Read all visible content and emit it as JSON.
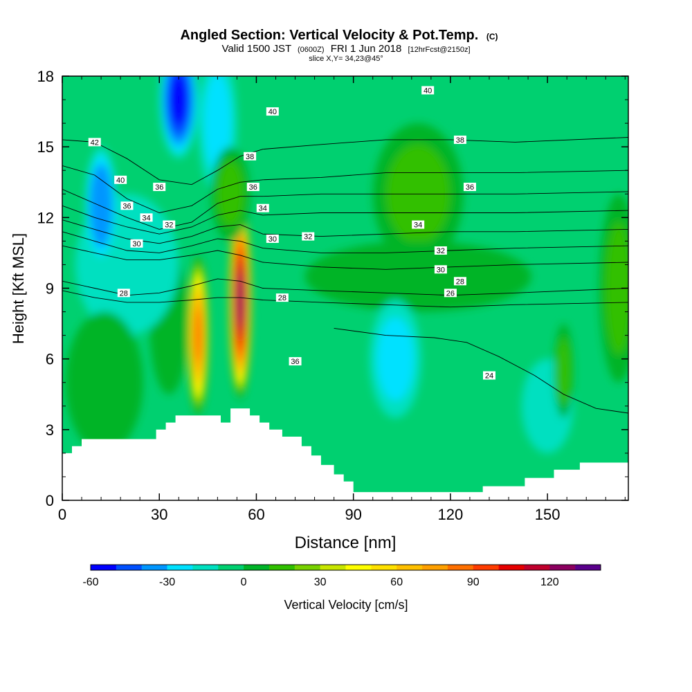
{
  "chart_data": {
    "type": "heatmap",
    "title": "Angled Section: Vertical Velocity & Pot.Temp.",
    "title_mark": "(C)",
    "subtitle_parts": {
      "valid": "Valid 1500 JST",
      "utc": "(0600Z)",
      "date": "FRI 1 Jun 2018",
      "fcst": "[12hrFcst@2150z]"
    },
    "slice_label": "slice X,Y= 34,23@45°",
    "xlabel": "Distance [nm]",
    "ylabel": "Height [Kft MSL]",
    "xlim": [
      0,
      175
    ],
    "ylim": [
      0,
      18
    ],
    "x_ticks": [
      {
        "value": 0,
        "label": "0"
      },
      {
        "value": 30,
        "label": "30"
      },
      {
        "value": 60,
        "label": "60"
      },
      {
        "value": 90,
        "label": "90"
      },
      {
        "value": 120,
        "label": "120"
      },
      {
        "value": 150,
        "label": "150"
      }
    ],
    "y_ticks": [
      {
        "value": 0,
        "label": "0"
      },
      {
        "value": 3,
        "label": "3"
      },
      {
        "value": 6,
        "label": "6"
      },
      {
        "value": 9,
        "label": "9"
      },
      {
        "value": 12,
        "label": "12"
      },
      {
        "value": 15,
        "label": "15"
      },
      {
        "value": 18,
        "label": "18"
      }
    ],
    "colorbar": {
      "label": "Vertical Velocity [cm/s]",
      "min": -60,
      "step": 10,
      "colors": [
        "#0000ff",
        "#0050ff",
        "#0096ff",
        "#00e1ff",
        "#00e0c0",
        "#00d070",
        "#00b428",
        "#30c000",
        "#78d200",
        "#c8e600",
        "#ffff00",
        "#ffe100",
        "#ffc000",
        "#ffa000",
        "#ff7000",
        "#ff3c00",
        "#e60000",
        "#c0002d",
        "#8c0060",
        "#5a008c"
      ],
      "ticks": [
        {
          "value": -60,
          "label": "-60"
        },
        {
          "value": -30,
          "label": "-30"
        },
        {
          "value": 0,
          "label": "0"
        },
        {
          "value": 30,
          "label": "30"
        },
        {
          "value": 60,
          "label": "60"
        },
        {
          "value": 90,
          "label": "90"
        },
        {
          "value": 120,
          "label": "120"
        }
      ]
    },
    "background_value": -5,
    "velocity_features": [
      {
        "x": 55,
        "y": 8.5,
        "rx": 3.5,
        "ry": 4.2,
        "value": 125
      },
      {
        "x": 42,
        "y": 7.0,
        "rx": 3.2,
        "ry": 3.4,
        "value": 80
      },
      {
        "x": 33,
        "y": 7.5,
        "rx": 6,
        "ry": 3,
        "value": 8
      },
      {
        "x": 20,
        "y": 10,
        "rx": 16,
        "ry": 3,
        "value": -12
      },
      {
        "x": 12,
        "y": 12.5,
        "rx": 5,
        "ry": 2.5,
        "value": -40
      },
      {
        "x": 36,
        "y": 17.0,
        "rx": 6,
        "ry": 2.5,
        "value": -55
      },
      {
        "x": 48,
        "y": 16.0,
        "rx": 6,
        "ry": 3,
        "value": -22
      },
      {
        "x": 52,
        "y": 13.0,
        "rx": 6,
        "ry": 2,
        "value": 15
      },
      {
        "x": 110,
        "y": 13.0,
        "rx": 14,
        "ry": 3,
        "value": 12
      },
      {
        "x": 110,
        "y": 9.5,
        "rx": 35,
        "ry": 1.5,
        "value": 8
      },
      {
        "x": 103,
        "y": 6.0,
        "rx": 8,
        "ry": 2.5,
        "value": -25
      },
      {
        "x": 150,
        "y": 4.0,
        "rx": 8,
        "ry": 2,
        "value": -18
      },
      {
        "x": 13,
        "y": 5.0,
        "rx": 12,
        "ry": 3,
        "value": 8
      },
      {
        "x": 155,
        "y": 5.5,
        "rx": 3,
        "ry": 2,
        "value": 15
      },
      {
        "x": 172,
        "y": 9.0,
        "rx": 6,
        "ry": 4,
        "value": 10
      }
    ],
    "terrain": [
      [
        0,
        2
      ],
      [
        3,
        2
      ],
      [
        3,
        2.3
      ],
      [
        6,
        2.3
      ],
      [
        6,
        2.6
      ],
      [
        29,
        2.6
      ],
      [
        29,
        3
      ],
      [
        32,
        3
      ],
      [
        32,
        3.3
      ],
      [
        35,
        3.3
      ],
      [
        35,
        3.6
      ],
      [
        49,
        3.6
      ],
      [
        49,
        3.3
      ],
      [
        52,
        3.3
      ],
      [
        52,
        3.9
      ],
      [
        58,
        3.9
      ],
      [
        58,
        3.6
      ],
      [
        61,
        3.6
      ],
      [
        61,
        3.3
      ],
      [
        64,
        3.3
      ],
      [
        64,
        3
      ],
      [
        68,
        3
      ],
      [
        68,
        2.7
      ],
      [
        74,
        2.7
      ],
      [
        74,
        2.3
      ],
      [
        77,
        2.3
      ],
      [
        77,
        1.9
      ],
      [
        80,
        1.9
      ],
      [
        80,
        1.5
      ],
      [
        84,
        1.5
      ],
      [
        84,
        1.1
      ],
      [
        87,
        1.1
      ],
      [
        87,
        0.8
      ],
      [
        90,
        0.8
      ],
      [
        90,
        0.35
      ],
      [
        130,
        0.35
      ],
      [
        130,
        0.6
      ],
      [
        143,
        0.6
      ],
      [
        143,
        0.95
      ],
      [
        152,
        0.95
      ],
      [
        152,
        1.3
      ],
      [
        160,
        1.3
      ],
      [
        160,
        1.6
      ],
      [
        175,
        1.6
      ]
    ],
    "contours": [
      {
        "label": "42",
        "points": [
          [
            0,
            15.3
          ],
          [
            10,
            15.2
          ],
          [
            20,
            14.5
          ],
          [
            30,
            13.6
          ],
          [
            40,
            13.4
          ],
          [
            48,
            14.0
          ],
          [
            55,
            14.6
          ],
          [
            62,
            14.9
          ],
          [
            80,
            15.1
          ],
          [
            100,
            15.3
          ],
          [
            120,
            15.3
          ],
          [
            140,
            15.2
          ],
          [
            175,
            15.4
          ]
        ]
      },
      {
        "label": "40",
        "points": [
          [
            0,
            14.2
          ],
          [
            10,
            13.8
          ],
          [
            20,
            12.8
          ],
          [
            30,
            12.2
          ],
          [
            40,
            12.5
          ],
          [
            48,
            13.2
          ],
          [
            55,
            13.5
          ],
          [
            62,
            13.6
          ],
          [
            80,
            13.7
          ],
          [
            100,
            13.9
          ],
          [
            120,
            13.9
          ],
          [
            140,
            13.9
          ],
          [
            175,
            14.0
          ]
        ]
      },
      {
        "label": "38",
        "points": [
          [
            0,
            13.2
          ],
          [
            10,
            12.6
          ],
          [
            20,
            12.0
          ],
          [
            30,
            11.5
          ],
          [
            40,
            11.8
          ],
          [
            48,
            12.6
          ],
          [
            55,
            12.9
          ],
          [
            62,
            12.9
          ],
          [
            80,
            13.0
          ],
          [
            100,
            13.0
          ],
          [
            120,
            13.0
          ],
          [
            140,
            13.0
          ],
          [
            175,
            13.1
          ]
        ]
      },
      {
        "label": "36",
        "points": [
          [
            0,
            12.5
          ],
          [
            10,
            12.0
          ],
          [
            20,
            11.6
          ],
          [
            30,
            11.3
          ],
          [
            40,
            11.6
          ],
          [
            48,
            12.1
          ],
          [
            55,
            12.3
          ],
          [
            62,
            12.1
          ],
          [
            80,
            12.2
          ],
          [
            100,
            12.2
          ],
          [
            120,
            12.2
          ],
          [
            140,
            12.2
          ],
          [
            175,
            12.3
          ]
        ]
      },
      {
        "label": "34",
        "points": [
          [
            0,
            11.9
          ],
          [
            10,
            11.5
          ],
          [
            20,
            11.1
          ],
          [
            30,
            10.9
          ],
          [
            40,
            11.2
          ],
          [
            48,
            11.6
          ],
          [
            55,
            11.7
          ],
          [
            62,
            11.3
          ],
          [
            80,
            11.2
          ],
          [
            100,
            11.3
          ],
          [
            120,
            11.4
          ],
          [
            140,
            11.4
          ],
          [
            175,
            11.5
          ]
        ]
      },
      {
        "label": "32",
        "points": [
          [
            0,
            11.4
          ],
          [
            10,
            11.0
          ],
          [
            20,
            10.6
          ],
          [
            30,
            10.5
          ],
          [
            40,
            10.8
          ],
          [
            48,
            11.1
          ],
          [
            55,
            11.0
          ],
          [
            62,
            10.7
          ],
          [
            80,
            10.5
          ],
          [
            100,
            10.5
          ],
          [
            120,
            10.6
          ],
          [
            140,
            10.7
          ],
          [
            175,
            10.8
          ]
        ]
      },
      {
        "label": "30",
        "points": [
          [
            0,
            10.8
          ],
          [
            10,
            10.5
          ],
          [
            20,
            10.2
          ],
          [
            30,
            10.2
          ],
          [
            40,
            10.4
          ],
          [
            48,
            10.6
          ],
          [
            55,
            10.4
          ],
          [
            62,
            10.1
          ],
          [
            80,
            9.9
          ],
          [
            100,
            9.8
          ],
          [
            120,
            9.9
          ],
          [
            140,
            10.0
          ],
          [
            175,
            10.1
          ]
        ]
      },
      {
        "label": "28",
        "points": [
          [
            0,
            9.3
          ],
          [
            10,
            9.0
          ],
          [
            20,
            8.7
          ],
          [
            30,
            8.8
          ],
          [
            40,
            9.1
          ],
          [
            48,
            9.4
          ],
          [
            55,
            9.3
          ],
          [
            62,
            9.0
          ],
          [
            80,
            8.9
          ],
          [
            100,
            8.8
          ],
          [
            120,
            8.7
          ],
          [
            140,
            8.8
          ],
          [
            175,
            9.0
          ]
        ]
      },
      {
        "label": "26",
        "points": [
          [
            0,
            8.9
          ],
          [
            10,
            8.6
          ],
          [
            20,
            8.4
          ],
          [
            30,
            8.4
          ],
          [
            40,
            8.5
          ],
          [
            48,
            8.6
          ],
          [
            55,
            8.6
          ],
          [
            62,
            8.5
          ],
          [
            80,
            8.4
          ],
          [
            100,
            8.3
          ],
          [
            120,
            8.2
          ],
          [
            140,
            8.3
          ],
          [
            175,
            8.4
          ]
        ]
      },
      {
        "label": "24",
        "points": [
          [
            84,
            7.3
          ],
          [
            100,
            7.0
          ],
          [
            115,
            6.9
          ],
          [
            125,
            6.7
          ],
          [
            135,
            6.1
          ],
          [
            146,
            5.3
          ],
          [
            155,
            4.5
          ],
          [
            165,
            3.9
          ],
          [
            175,
            3.7
          ]
        ]
      }
    ],
    "contour_labels": [
      {
        "text": "42",
        "x": 10,
        "y": 15.2
      },
      {
        "text": "40",
        "x": 18,
        "y": 13.6
      },
      {
        "text": "36",
        "x": 30,
        "y": 13.3
      },
      {
        "text": "36",
        "x": 20,
        "y": 12.5
      },
      {
        "text": "34",
        "x": 26,
        "y": 12.0
      },
      {
        "text": "32",
        "x": 33,
        "y": 11.7
      },
      {
        "text": "30",
        "x": 23,
        "y": 10.9
      },
      {
        "text": "28",
        "x": 19,
        "y": 8.8
      },
      {
        "text": "40",
        "x": 65,
        "y": 16.5
      },
      {
        "text": "38",
        "x": 58,
        "y": 14.6
      },
      {
        "text": "36",
        "x": 59,
        "y": 13.3
      },
      {
        "text": "34",
        "x": 62,
        "y": 12.4
      },
      {
        "text": "30",
        "x": 65,
        "y": 11.1
      },
      {
        "text": "32",
        "x": 76,
        "y": 11.2
      },
      {
        "text": "28",
        "x": 68,
        "y": 8.6
      },
      {
        "text": "36",
        "x": 72,
        "y": 5.9
      },
      {
        "text": "40",
        "x": 113,
        "y": 17.4
      },
      {
        "text": "38",
        "x": 123,
        "y": 15.3
      },
      {
        "text": "36",
        "x": 126,
        "y": 13.3
      },
      {
        "text": "34",
        "x": 110,
        "y": 11.7
      },
      {
        "text": "32",
        "x": 117,
        "y": 10.6
      },
      {
        "text": "30",
        "x": 117,
        "y": 9.8
      },
      {
        "text": "28",
        "x": 123,
        "y": 9.3
      },
      {
        "text": "26",
        "x": 120,
        "y": 8.8
      },
      {
        "text": "24",
        "x": 132,
        "y": 5.3
      }
    ]
  }
}
